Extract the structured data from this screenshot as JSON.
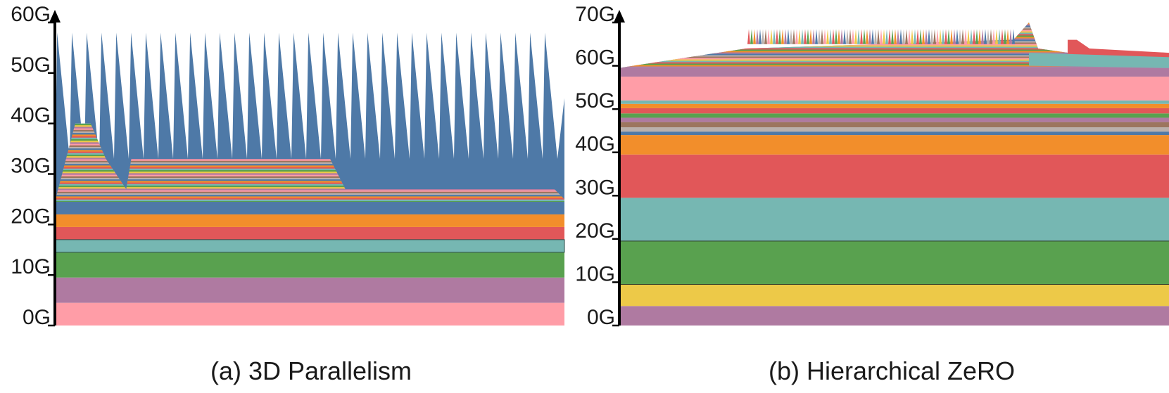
{
  "charts": [
    {
      "caption": "(a) 3D Parallelism",
      "chart_data": {
        "type": "area",
        "title": "",
        "xlabel": "",
        "ylabel": "",
        "y_unit_suffix": "G",
        "ylim": [
          0,
          60
        ],
        "yticks": [
          0,
          10,
          20,
          30,
          40,
          50,
          60
        ],
        "grid": false,
        "legend": "none",
        "static_layers": [
          {
            "from": 0,
            "to": 4.5,
            "color": "#ff9da7"
          },
          {
            "from": 4.5,
            "to": 9.5,
            "color": "#af7aa1"
          },
          {
            "from": 9.5,
            "to": 14.5,
            "color": "#59a14f"
          },
          {
            "from": 14.5,
            "to": 17.0,
            "color": "#76b7b2"
          },
          {
            "from": 17.0,
            "to": 19.5,
            "color": "#e15759"
          },
          {
            "from": 19.5,
            "to": 22.0,
            "color": "#f28e2b"
          },
          {
            "from": 22.0,
            "to": 24.5,
            "color": "#4e79a7"
          }
        ],
        "striped_region_profile": [
          [
            0,
            24.5
          ],
          [
            0.04,
            40
          ],
          [
            0.07,
            40
          ],
          [
            0.1,
            33
          ],
          [
            0.14,
            27
          ],
          [
            0.15,
            33
          ],
          [
            0.54,
            33
          ],
          [
            0.57,
            27
          ],
          [
            0.98,
            27
          ],
          [
            1.0,
            25
          ]
        ],
        "peak_count": 34,
        "peak_height": 58,
        "peak_color": "#4e79a7",
        "stripe_colors": [
          "#4e79a7",
          "#f28e2b",
          "#e15759",
          "#76b7b2",
          "#59a14f",
          "#edc948",
          "#af7aa1",
          "#ff9da7",
          "#9c755f",
          "#bab0ac"
        ]
      }
    },
    {
      "caption": "(b) Hierarchical ZeRO",
      "chart_data": {
        "type": "area",
        "title": "",
        "xlabel": "",
        "ylabel": "",
        "y_unit_suffix": "G",
        "ylim": [
          0,
          70
        ],
        "yticks": [
          0,
          10,
          20,
          30,
          40,
          50,
          60,
          70
        ],
        "grid": false,
        "legend": "none",
        "static_layers": [
          {
            "from": 0,
            "to": 4.5,
            "color": "#af7aa1"
          },
          {
            "from": 4.5,
            "to": 9.5,
            "color": "#edc948"
          },
          {
            "from": 9.5,
            "to": 19.5,
            "color": "#59a14f"
          },
          {
            "from": 19.5,
            "to": 29.5,
            "color": "#76b7b2"
          },
          {
            "from": 29.5,
            "to": 39.5,
            "color": "#e15759"
          },
          {
            "from": 39.5,
            "to": 44.0,
            "color": "#f28e2b"
          },
          {
            "from": 44.0,
            "to": 44.8,
            "color": "#4e79a7"
          },
          {
            "from": 44.8,
            "to": 45.8,
            "color": "#bab0ac"
          },
          {
            "from": 45.8,
            "to": 47.0,
            "color": "#9c755f"
          },
          {
            "from": 47.0,
            "to": 48.0,
            "color": "#af7aa1"
          },
          {
            "from": 48.0,
            "to": 49.0,
            "color": "#59a14f"
          },
          {
            "from": 49.0,
            "to": 50.2,
            "color": "#e15759"
          },
          {
            "from": 50.2,
            "to": 51.2,
            "color": "#f28e2b"
          },
          {
            "from": 51.2,
            "to": 52.0,
            "color": "#76b7b2"
          },
          {
            "from": 52.0,
            "to": 57.5,
            "color": "#ff9da7"
          },
          {
            "from": 57.5,
            "to": 59.5,
            "color": "#af7aa1"
          }
        ],
        "stripe_colors": [
          "#bab0ac",
          "#9c755f",
          "#ff9da7",
          "#edc948",
          "#76b7b2",
          "#e15759",
          "#59a14f",
          "#f28e2b",
          "#af7aa1",
          "#4e79a7"
        ]
      }
    }
  ]
}
